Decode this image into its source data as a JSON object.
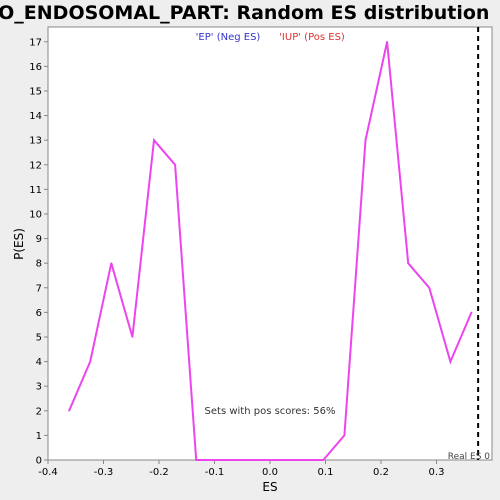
{
  "chart_data": {
    "type": "line",
    "title": "GO_ENDOSOMAL_PART: Random ES distribution",
    "xlabel": "ES",
    "ylabel": "P(ES)",
    "xlim": [
      -0.4,
      0.4
    ],
    "ylim": [
      0,
      17.6
    ],
    "x_ticks": [
      "-0.4",
      "-0.3",
      "-0.2",
      "-0.1",
      "0.0",
      "0.1",
      "0.2",
      "0.3"
    ],
    "y_ticks": [
      "0",
      "1",
      "2",
      "3",
      "4",
      "5",
      "6",
      "7",
      "8",
      "9",
      "10",
      "11",
      "12",
      "13",
      "14",
      "15",
      "16",
      "17"
    ],
    "x": [
      -0.362,
      -0.324,
      -0.286,
      -0.248,
      -0.209,
      -0.171,
      -0.133,
      -0.095,
      -0.057,
      -0.019,
      0.02,
      0.058,
      0.096,
      0.134,
      0.172,
      0.211,
      0.249,
      0.287,
      0.325,
      0.363
    ],
    "series": [
      {
        "color": "#ee44ee",
        "values": [
          2,
          4,
          8,
          5,
          13,
          12,
          0,
          0,
          0,
          0,
          0,
          0,
          0,
          1,
          13,
          17,
          8,
          7,
          4,
          6
        ]
      }
    ],
    "legend": [
      {
        "label": "'EP' (Neg ES)",
        "color": "#3333cc"
      },
      {
        "label": "'IUP' (Pos ES)",
        "color": "#dd3333"
      }
    ],
    "legend_position": "top-center",
    "annotation": "Sets with pos scores: 56%",
    "real_es_label": "Real ES 0",
    "real_es_value": 0.375,
    "grid": false
  }
}
